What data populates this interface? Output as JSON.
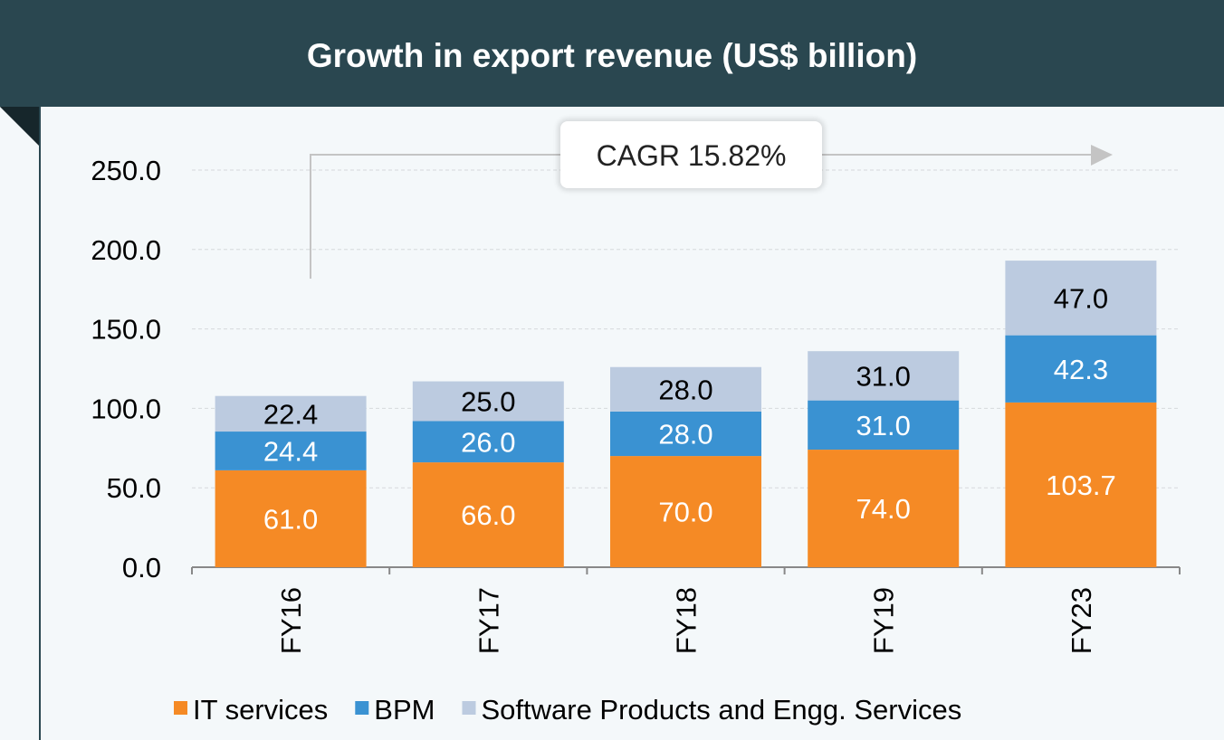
{
  "chart_data": {
    "type": "bar",
    "stacked": true,
    "title": "Growth in export revenue (US$ billion)",
    "categories": [
      "FY16",
      "FY17",
      "FY18",
      "FY19",
      "FY23"
    ],
    "series": [
      {
        "name": "IT services",
        "color": "#f58a25",
        "label_color": "#ffffff",
        "values": [
          61.0,
          66.0,
          70.0,
          74.0,
          103.7
        ],
        "labels": [
          "61.0",
          "66.0",
          "70.0",
          "74.0",
          "103.7"
        ]
      },
      {
        "name": "BPM",
        "color": "#3a92d2",
        "label_color": "#ffffff",
        "values": [
          24.4,
          26.0,
          28.0,
          31.0,
          42.3
        ],
        "labels": [
          "24.4",
          "26.0",
          "28.0",
          "31.0",
          "42.3"
        ]
      },
      {
        "name": "Software Products and Engg. Services",
        "color": "#bccbe0",
        "label_color": "#000000",
        "values": [
          22.4,
          25.0,
          28.0,
          31.0,
          47.0
        ],
        "labels": [
          "22.4",
          "25.0",
          "28.0",
          "31.0",
          "47.0"
        ]
      }
    ],
    "yticks": [
      "0.0",
      "50.0",
      "100.0",
      "150.0",
      "200.0",
      "250.0"
    ],
    "ylim": [
      0,
      250
    ],
    "grid": true,
    "legend": "bottom",
    "annotation": "CAGR 15.82%"
  }
}
